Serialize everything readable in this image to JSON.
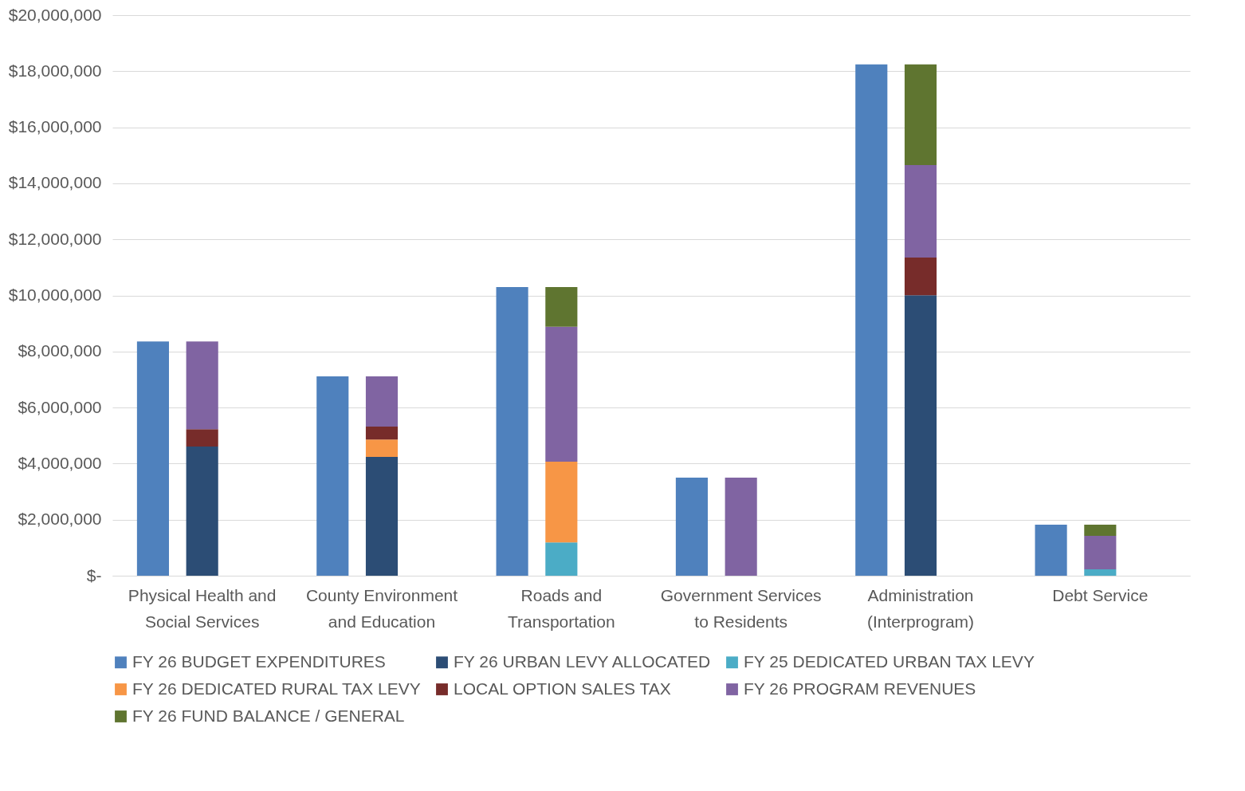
{
  "chart_data": {
    "type": "bar",
    "categories": [
      "Physical Health and Social Services",
      "County Environment and Education",
      "Roads and Transportation",
      "Government Services to Residents",
      "Administration (Interprogram)",
      "Debt Service"
    ],
    "series": [
      {
        "name": "FY 26 BUDGET EXPENDITURES",
        "color": "#4f81bd",
        "values": [
          8360000,
          7110000,
          10300000,
          3500000,
          18240000,
          1820000
        ]
      },
      {
        "name": "FY 26 URBAN LEVY ALLOCATED",
        "color": "#2c4d75",
        "values": [
          4610000,
          4240000,
          null,
          null,
          10010000,
          null
        ],
        "base": [
          0,
          0,
          null,
          null,
          0,
          null
        ]
      },
      {
        "name": "FY 25 DEDICATED URBAN TAX LEVY",
        "color": "#4bacc6",
        "values": [
          null,
          null,
          1190000,
          null,
          null,
          230000
        ],
        "base": [
          null,
          null,
          0,
          null,
          null,
          0
        ]
      },
      {
        "name": "FY 26 DEDICATED RURAL TAX LEVY",
        "color": "#f79646",
        "values": [
          null,
          620000,
          2880000,
          null,
          null,
          null
        ],
        "base": [
          null,
          4240000,
          1190000,
          null,
          null,
          null
        ]
      },
      {
        "name": "LOCAL OPTION SALES TAX",
        "color": "#772c2a",
        "values": [
          620000,
          460000,
          null,
          null,
          1340000,
          null
        ],
        "base": [
          4610000,
          4860000,
          null,
          null,
          10010000,
          null
        ]
      },
      {
        "name": "FY 26 PROGRAM REVENUES",
        "color": "#8064a2",
        "values": [
          3130000,
          1790000,
          4810000,
          3500000,
          3300000,
          1190000
        ],
        "base": [
          5230000,
          5320000,
          4070000,
          0,
          11350000,
          230000
        ]
      },
      {
        "name": "FY 26 FUND BALANCE / GENERAL",
        "color": "#5f7530",
        "values": [
          null,
          null,
          1420000,
          null,
          3590000,
          400000
        ],
        "base": [
          null,
          null,
          8880000,
          null,
          14650000,
          1420000
        ]
      }
    ],
    "ylim": [
      0,
      20000000
    ],
    "yticks": [
      {
        "value": 0,
        "label": "$-"
      },
      {
        "value": 2000000,
        "label": "$2,000,000"
      },
      {
        "value": 4000000,
        "label": "$4,000,000"
      },
      {
        "value": 6000000,
        "label": "$6,000,000"
      },
      {
        "value": 8000000,
        "label": "$8,000,000"
      },
      {
        "value": 10000000,
        "label": "$10,000,000"
      },
      {
        "value": 12000000,
        "label": "$12,000,000"
      },
      {
        "value": 14000000,
        "label": "$14,000,000"
      },
      {
        "value": 16000000,
        "label": "$16,000,000"
      },
      {
        "value": 18000000,
        "label": "$18,000,000"
      },
      {
        "value": 20000000,
        "label": "$20,000,000"
      }
    ],
    "grid": "y",
    "legend": "bottom"
  }
}
